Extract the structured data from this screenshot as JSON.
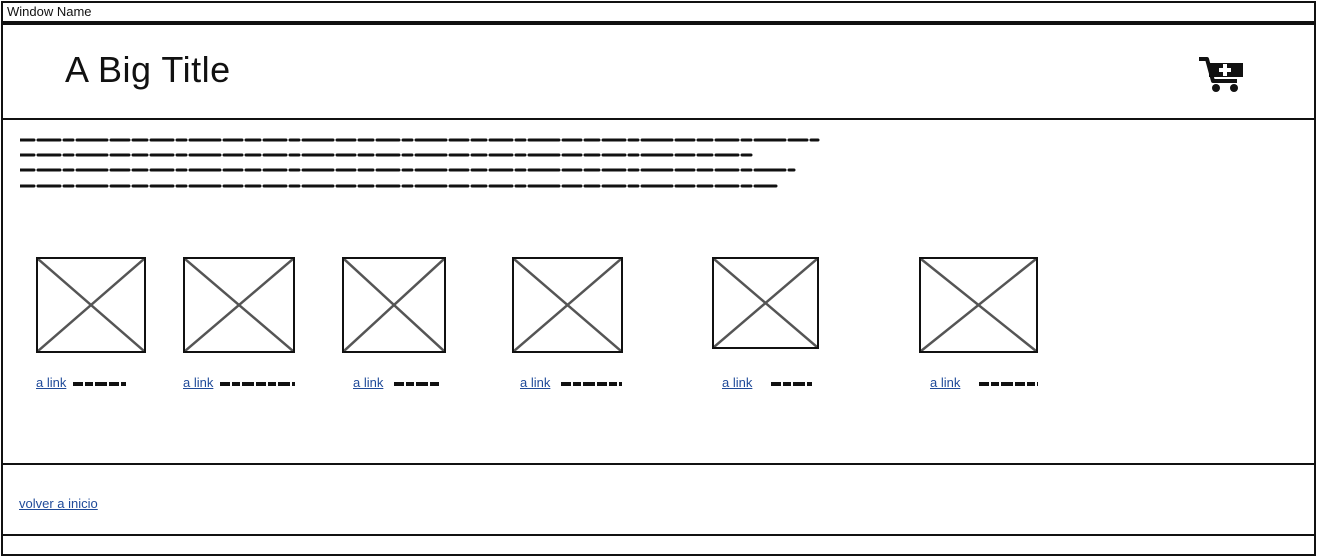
{
  "window": {
    "title": "Window Name"
  },
  "header": {
    "title": "A Big Title",
    "cart_icon": "cart-plus-icon"
  },
  "content": {
    "products": [
      {
        "link": "a link"
      },
      {
        "link": "a link"
      },
      {
        "link": "a link"
      },
      {
        "link": "a link"
      },
      {
        "link": "a link"
      },
      {
        "link": "a link"
      }
    ]
  },
  "footer": {
    "back_link": "volver a inicio"
  },
  "colors": {
    "link": "#1f4a99",
    "border": "#111111",
    "placeholder_lines": "#555555"
  }
}
